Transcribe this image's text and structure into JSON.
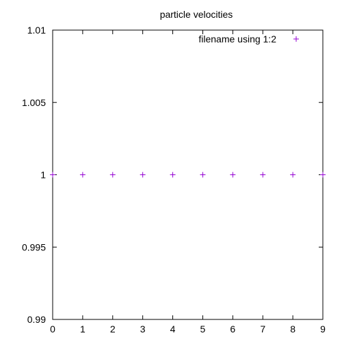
{
  "chart_data": {
    "type": "scatter",
    "title": "particle velocities",
    "xlabel": "",
    "ylabel": "",
    "xlim": [
      0,
      9
    ],
    "ylim": [
      0.99,
      1.01
    ],
    "x_ticks": [
      "0",
      "1",
      "2",
      "3",
      "4",
      "5",
      "6",
      "7",
      "8",
      "9"
    ],
    "y_ticks": [
      "1.01",
      "1.005",
      "1",
      "0.995",
      "0.99"
    ],
    "grid": false,
    "legend_position": "top-right",
    "series": [
      {
        "name": "filename using 1:2",
        "marker": "plus",
        "color": "#9400d3",
        "x": [
          0,
          1,
          2,
          3,
          4,
          5,
          6,
          7,
          8,
          9
        ],
        "y": [
          1,
          1,
          1,
          1,
          1,
          1,
          1,
          1,
          1,
          1
        ]
      }
    ]
  }
}
